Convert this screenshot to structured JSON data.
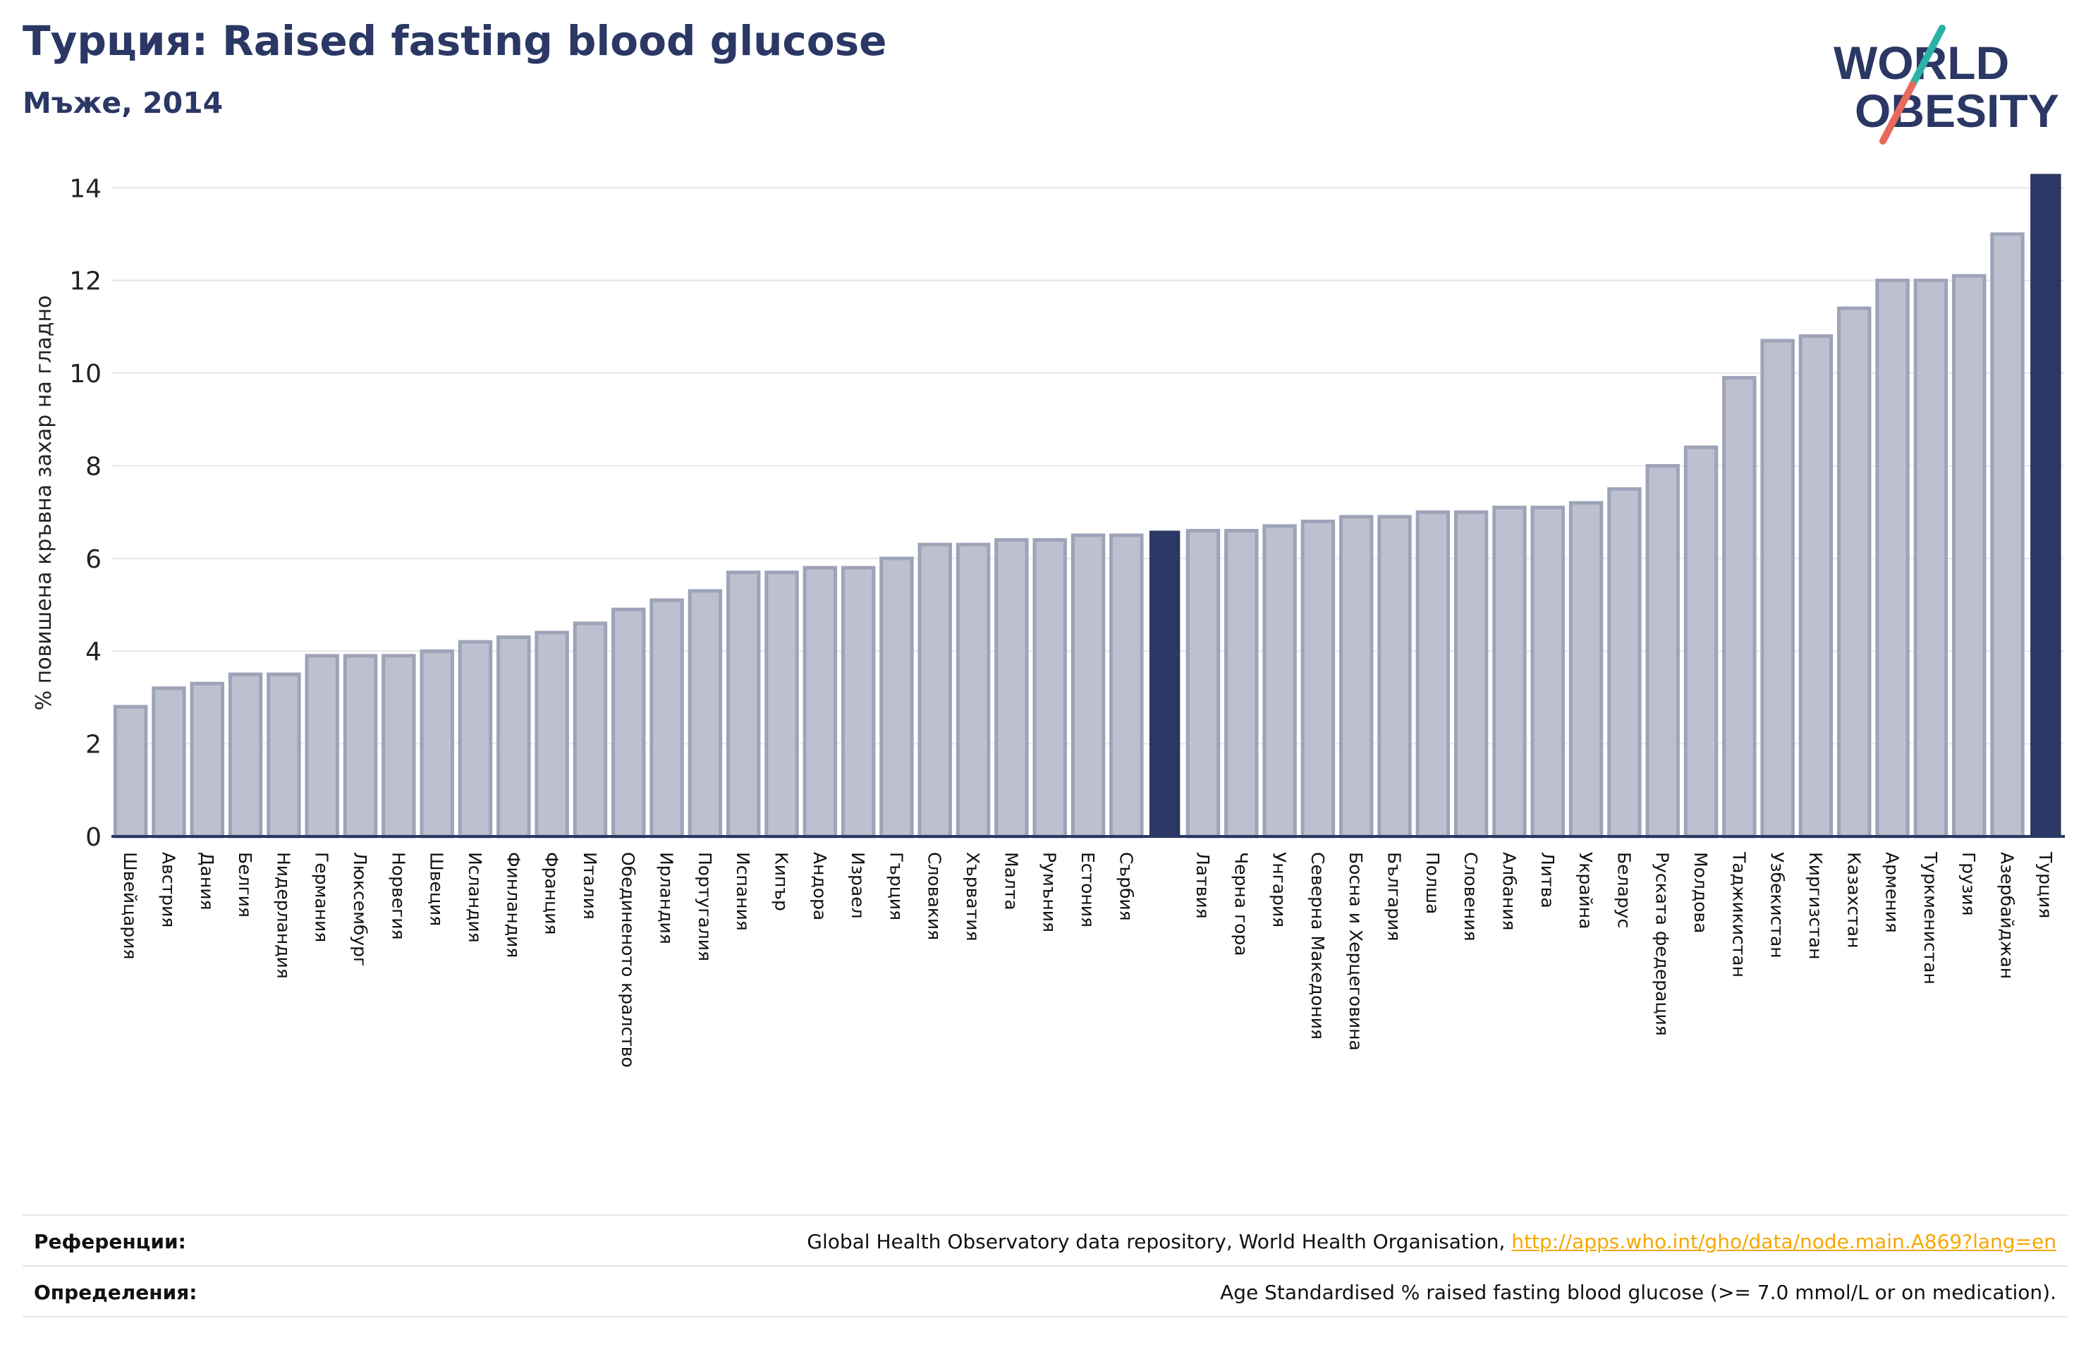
{
  "header": {
    "title": "Турция: Raised fasting blood glucose",
    "subtitle": "Мъже, 2014"
  },
  "logo": {
    "line1": "WORLD",
    "line2": "OBESITY"
  },
  "chart_data": {
    "type": "bar",
    "ylabel": "% повишена кръвна захар на гладно",
    "ylim": [
      0,
      14.4
    ],
    "yticks": [
      0,
      2,
      4,
      6,
      8,
      10,
      12,
      14
    ],
    "grid": true,
    "categories": [
      "Швейцария",
      "Австрия",
      "Дания",
      "Белгия",
      "Нидерландия",
      "Германия",
      "Люксембург",
      "Норвегия",
      "Швеция",
      "Исландия",
      "Финландия",
      "Франция",
      "Италия",
      "Обединеното кралство",
      "Ирландия",
      "Португалия",
      "Испания",
      "Кипър",
      "Андора",
      "Израел",
      "Гърция",
      "Словакия",
      "Хърватия",
      "Малта",
      "Румъния",
      "Естония",
      "Сърбия",
      "",
      "Латвия",
      "Черна гора",
      "Унгария",
      "Северна Македония",
      "Босна и Херцеговина",
      "България",
      "Полша",
      "Словения",
      "Албания",
      "Литва",
      "Украйна",
      "Беларус",
      "Руската федерация",
      "Молдова",
      "Таджикистан",
      "Узбекистан",
      "Киргизстан",
      "Казахстан",
      "Армения",
      "Туркменистан",
      "Грузия",
      "Азербайджан",
      "Турция"
    ],
    "values": [
      2.8,
      3.2,
      3.3,
      3.5,
      3.5,
      3.9,
      3.9,
      3.9,
      4.0,
      4.2,
      4.3,
      4.4,
      4.6,
      4.9,
      5.1,
      5.3,
      5.7,
      5.7,
      5.8,
      5.8,
      6.0,
      6.3,
      6.3,
      6.4,
      6.4,
      6.5,
      6.5,
      6.6,
      6.6,
      6.6,
      6.7,
      6.8,
      6.9,
      6.9,
      7.0,
      7.0,
      7.1,
      7.1,
      7.2,
      7.5,
      8.0,
      8.4,
      9.9,
      10.7,
      10.8,
      11.4,
      12.0,
      12.0,
      12.1,
      13.0,
      14.3
    ],
    "highlight": [
      27,
      50
    ],
    "colors": {
      "bar": "#bcc0cf",
      "bar_edge": "#9ea3b8",
      "highlight": "#2b3764",
      "grid": "#e6e6e6",
      "axis": "#2b3764"
    }
  },
  "footer": {
    "references_label": "Референции:",
    "references_text": "Global Health Observatory data repository, World Health Organisation, ",
    "references_link": "http://apps.who.int/gho/data/node.main.A869?lang=en",
    "definitions_label": "Определения:",
    "definitions_text": "Age Standardised % raised fasting blood glucose (>= 7.0 mmol/L or on medication)."
  }
}
